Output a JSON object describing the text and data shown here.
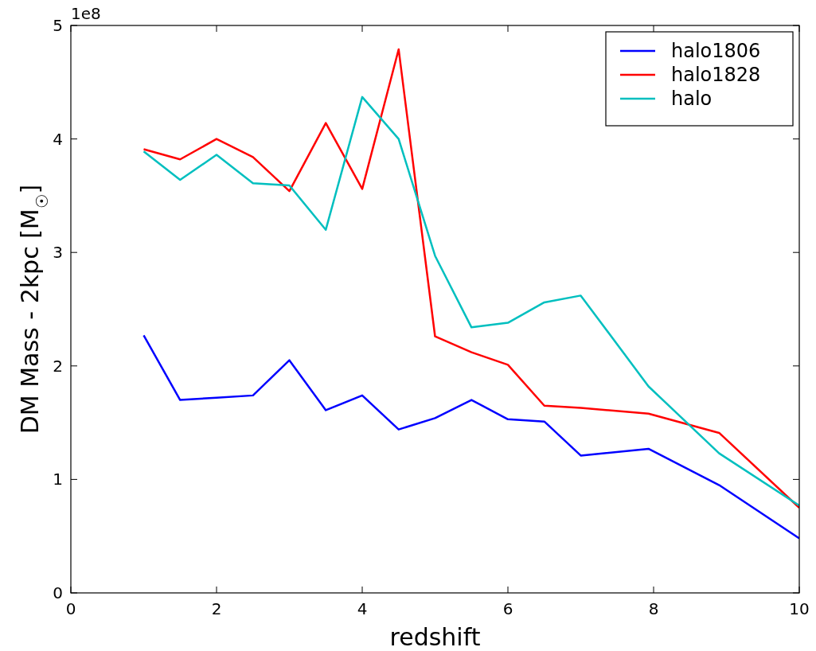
{
  "chart_data": {
    "type": "line",
    "xlabel": "redshift",
    "ylabel": "DM Mass - 2kpc [M$_{☉}$]",
    "x": [
      1,
      1.5,
      2,
      2.5,
      3,
      3.5,
      4,
      4.5,
      5,
      5.5,
      6,
      6.5,
      7,
      7.93,
      8.9,
      10
    ],
    "series": [
      {
        "name": "halo1806",
        "color": "#0000ff",
        "values": [
          2.27,
          1.7,
          1.72,
          1.74,
          2.05,
          1.61,
          1.74,
          1.44,
          1.54,
          1.7,
          1.53,
          1.51,
          1.21,
          1.27,
          0.95,
          0.48
        ]
      },
      {
        "name": "halo1828",
        "color": "#ff0000",
        "values": [
          3.91,
          3.82,
          4.0,
          3.84,
          3.54,
          4.14,
          3.56,
          4.79,
          2.26,
          2.12,
          2.01,
          1.65,
          1.63,
          1.58,
          1.41,
          0.75
        ]
      },
      {
        "name": "halo",
        "color": "#00bfbf",
        "values": [
          3.89,
          3.64,
          3.86,
          3.61,
          3.59,
          3.2,
          4.37,
          4.0,
          2.97,
          2.34,
          2.38,
          2.56,
          2.62,
          1.82,
          1.23,
          0.77
        ]
      }
    ],
    "xlim": [
      0,
      10
    ],
    "xticks": [
      0,
      2,
      4,
      6,
      8,
      10
    ],
    "ylim": [
      0,
      5
    ],
    "yticks": [
      0,
      1,
      2,
      3,
      4,
      5
    ],
    "annotations": [
      "1e8"
    ],
    "legend": "top right",
    "grid": false,
    "marker": "none",
    "line_style": "solid"
  }
}
